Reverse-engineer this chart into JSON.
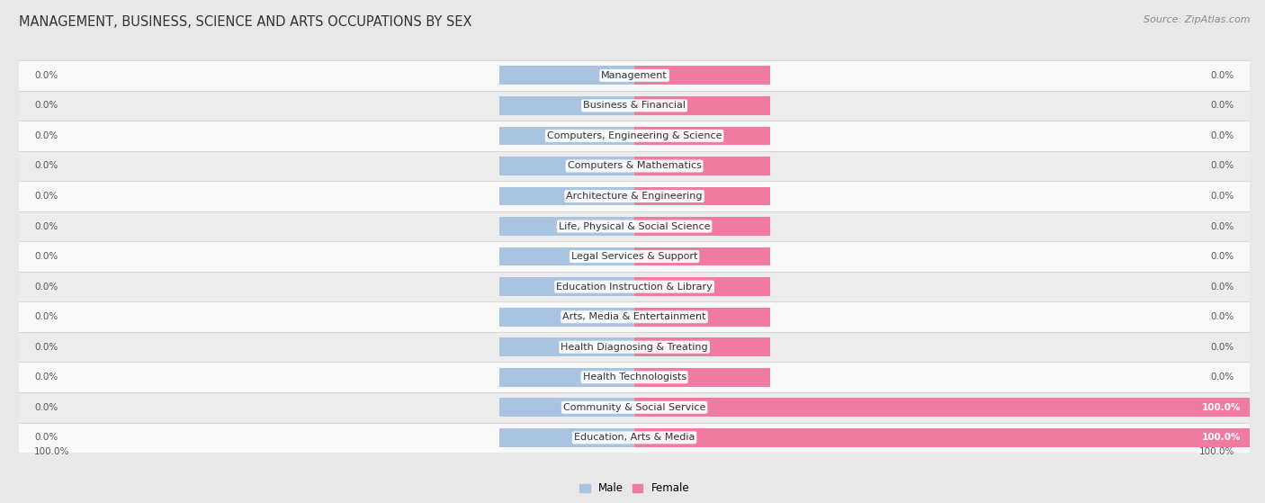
{
  "title": "MANAGEMENT, BUSINESS, SCIENCE AND ARTS OCCUPATIONS BY SEX",
  "source": "Source: ZipAtlas.com",
  "categories": [
    "Management",
    "Business & Financial",
    "Computers, Engineering & Science",
    "Computers & Mathematics",
    "Architecture & Engineering",
    "Life, Physical & Social Science",
    "Legal Services & Support",
    "Education Instruction & Library",
    "Arts, Media & Entertainment",
    "Health Diagnosing & Treating",
    "Health Technologists",
    "Community & Social Service",
    "Education, Arts & Media"
  ],
  "male_values": [
    0.0,
    0.0,
    0.0,
    0.0,
    0.0,
    0.0,
    0.0,
    0.0,
    0.0,
    0.0,
    0.0,
    0.0,
    0.0
  ],
  "female_values": [
    0.0,
    0.0,
    0.0,
    0.0,
    0.0,
    0.0,
    0.0,
    0.0,
    0.0,
    0.0,
    0.0,
    100.0,
    100.0
  ],
  "male_color": "#a8c4e0",
  "female_color": "#f07aa0",
  "male_label": "Male",
  "female_label": "Female",
  "axis_limit": 100,
  "default_bar_pct": 22,
  "background_color": "#e8e8e8",
  "row_bg_light": "#f8f8f8",
  "row_bg_dark": "#ececec",
  "label_fontsize": 8.0,
  "title_fontsize": 10.5,
  "source_fontsize": 8.0,
  "value_fontsize": 7.5,
  "legend_fontsize": 8.5
}
